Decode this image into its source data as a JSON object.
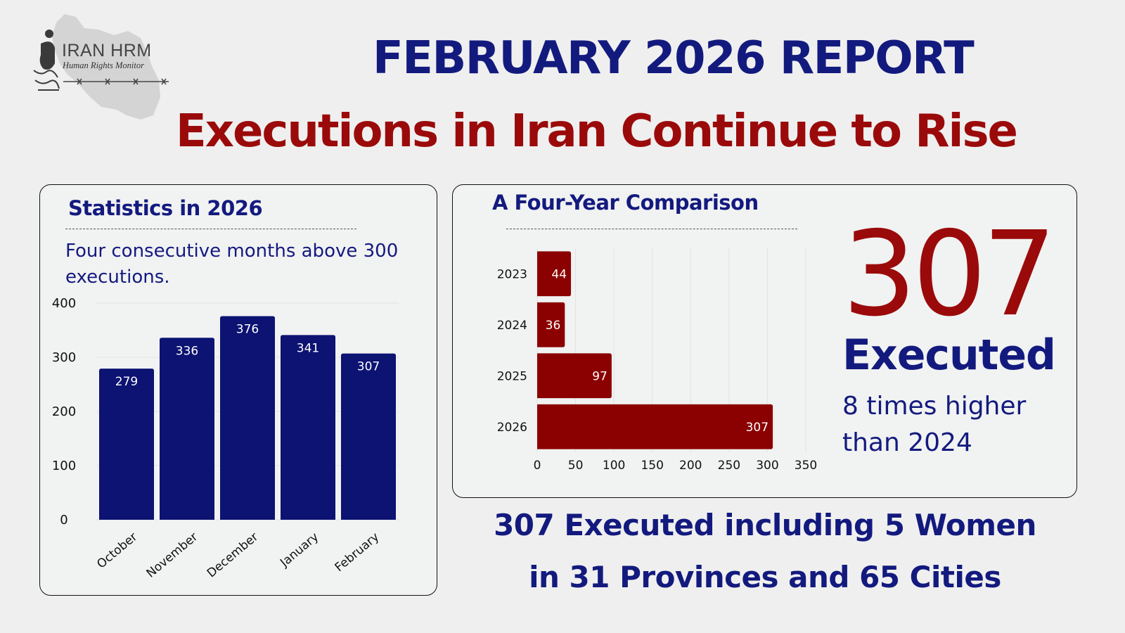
{
  "logo": {
    "name": "IRAN HRM",
    "subtitle": "Human Rights Monitor"
  },
  "header": {
    "title": "FEBRUARY 2026 REPORT",
    "subtitle": "Executions in Iran Continue to Rise"
  },
  "left_panel": {
    "title": "Statistics in 2026",
    "note": "Four consecutive months above 300 executions."
  },
  "right_panel": {
    "title": "A Four-Year Comparison",
    "headline_number": "307",
    "headline_label": "Executed",
    "headline_note": "8 times higher than 2024"
  },
  "footer": {
    "line1": "307 Executed including 5 Women",
    "line2": "in 31 Provinces and 65 Cities"
  },
  "colors": {
    "navy": "#131a7e",
    "bar_navy": "#0c1372",
    "red": "#9b0a0a",
    "bar_red": "#8b0000"
  },
  "chart_data": [
    {
      "type": "bar",
      "orientation": "vertical",
      "categories": [
        "October",
        "November",
        "December",
        "January",
        "February"
      ],
      "values": [
        279,
        336,
        376,
        341,
        307
      ],
      "ylim": [
        0,
        400
      ],
      "yticks": [
        0,
        100,
        200,
        300,
        400
      ],
      "grid": true
    },
    {
      "type": "bar",
      "orientation": "horizontal",
      "categories": [
        "2023",
        "2024",
        "2025",
        "2026"
      ],
      "values": [
        44,
        36,
        97,
        307
      ],
      "xlim": [
        0,
        350
      ],
      "xticks": [
        0,
        50,
        100,
        150,
        200,
        250,
        300,
        350
      ],
      "grid": true
    }
  ]
}
